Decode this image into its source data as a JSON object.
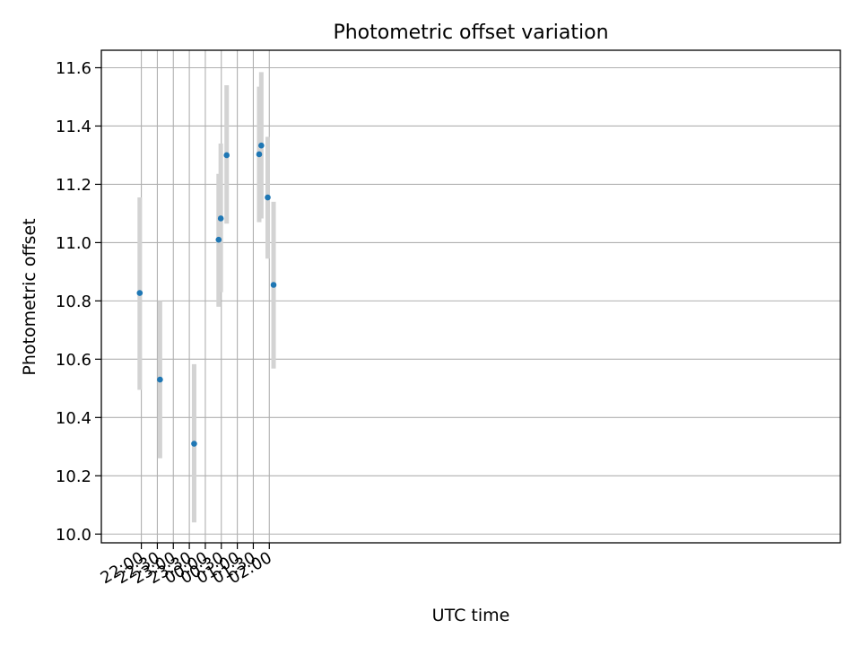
{
  "chart_data": {
    "type": "scatter",
    "title": "Photometric offset variation",
    "xlabel": "UTC time",
    "ylabel": "Photometric offset",
    "xlim_minutes": [
      -2475,
      -1089
    ],
    "x_ticks": [
      {
        "minute": -2400,
        "label": "22:00"
      },
      {
        "minute": -2370,
        "label": "22:30"
      },
      {
        "minute": -2340,
        "label": "23:00"
      },
      {
        "minute": -2310,
        "label": "23:30"
      },
      {
        "minute": -2280,
        "label": "00:00"
      },
      {
        "minute": -2250,
        "label": "00:30"
      },
      {
        "minute": -2220,
        "label": "01:00"
      },
      {
        "minute": -2190,
        "label": "01:30"
      },
      {
        "minute": -2160,
        "label": "02:00"
      }
    ],
    "ylim": [
      9.97,
      11.66
    ],
    "y_ticks": [
      "10.0",
      "10.2",
      "10.4",
      "10.6",
      "10.8",
      "11.0",
      "11.2",
      "11.4",
      "11.6"
    ],
    "grid": true,
    "colors": {
      "point": "#1f77b4",
      "errorbar": "#d3d3d3",
      "grid": "#b0b0b0",
      "axes": "#000000"
    },
    "points": [
      {
        "time": "21:57",
        "y": 10.827,
        "lo": 10.495,
        "hi": 11.155
      },
      {
        "time": "22:35",
        "y": 10.53,
        "lo": 10.26,
        "hi": 10.8
      },
      {
        "time": "23:39",
        "y": 10.31,
        "lo": 10.04,
        "hi": 10.583
      },
      {
        "time": "00:25",
        "y": 11.01,
        "lo": 10.78,
        "hi": 11.236
      },
      {
        "time": "00:29",
        "y": 11.083,
        "lo": 10.83,
        "hi": 11.34
      },
      {
        "time": "00:40",
        "y": 11.3,
        "lo": 11.065,
        "hi": 11.54
      },
      {
        "time": "01:41",
        "y": 11.303,
        "lo": 11.07,
        "hi": 11.535
      },
      {
        "time": "01:45",
        "y": 11.333,
        "lo": 11.083,
        "hi": 11.585
      },
      {
        "time": "01:57",
        "y": 11.155,
        "lo": 10.945,
        "hi": 11.363
      },
      {
        "time": "02:08",
        "y": 10.855,
        "lo": 10.568,
        "hi": 11.14
      }
    ]
  }
}
